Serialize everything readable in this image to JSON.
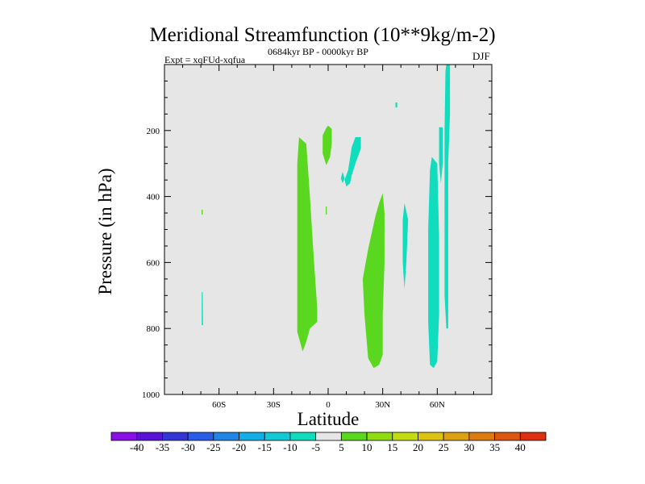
{
  "chart_data": {
    "type": "contour",
    "title": "Meridional Streamfunction (10**9kg/m-2)",
    "experiment": "Expt = xqFUd-xqfua",
    "period": "0684kyr BP - 0000kyr BP",
    "season": "DJF",
    "xlabel": "Latitude",
    "ylabel": "Pressure (in hPa)",
    "xlim": [
      -90,
      90
    ],
    "ylim": [
      1000,
      0
    ],
    "x_ticks": [
      {
        "value": -60,
        "label": "60S"
      },
      {
        "value": -30,
        "label": "30S"
      },
      {
        "value": 0,
        "label": "0"
      },
      {
        "value": 30,
        "label": "30N"
      },
      {
        "value": 60,
        "label": "60N"
      }
    ],
    "y_ticks": [
      {
        "value": 200,
        "label": "200"
      },
      {
        "value": 400,
        "label": "400"
      },
      {
        "value": 600,
        "label": "600"
      },
      {
        "value": 800,
        "label": "800"
      },
      {
        "value": 1000,
        "label": "1000"
      }
    ],
    "background_color": "#e6e6e6",
    "colorbar": {
      "levels": [
        "-40",
        "-35",
        "-30",
        "-25",
        "-20",
        "-15",
        "-10",
        "-5",
        "5",
        "10",
        "15",
        "20",
        "25",
        "30",
        "35",
        "40"
      ],
      "colors": [
        "#8a0ee6",
        "#5a12d6",
        "#3535d6",
        "#2a5de6",
        "#1f86e6",
        "#14aee6",
        "#12c9d6",
        "#10dcbe",
        "#e6e6e6",
        "#5ad81f",
        "#8fdc10",
        "#c2dc10",
        "#dcc410",
        "#dca010",
        "#dc7c10",
        "#dc5810",
        "#dc3010"
      ]
    },
    "regions": [
      {
        "name": "green-band-15s",
        "class_value": "5 to 10",
        "color": "#5ad81f",
        "points": [
          [
            -16,
            220
          ],
          [
            -12,
            240
          ],
          [
            -10,
            400
          ],
          [
            -8,
            580
          ],
          [
            -6,
            740
          ],
          [
            -6,
            780
          ],
          [
            -10,
            800
          ],
          [
            -12,
            840
          ],
          [
            -14,
            870
          ],
          [
            -17,
            810
          ],
          [
            -17,
            500
          ],
          [
            -17,
            300
          ]
        ]
      },
      {
        "name": "green-band-25n",
        "class_value": "5 to 10",
        "color": "#5ad81f",
        "points": [
          [
            30,
            390
          ],
          [
            31,
            450
          ],
          [
            31,
            600
          ],
          [
            30,
            760
          ],
          [
            30,
            880
          ],
          [
            28,
            910
          ],
          [
            25,
            920
          ],
          [
            22,
            890
          ],
          [
            20,
            760
          ],
          [
            19,
            650
          ],
          [
            22,
            560
          ],
          [
            26,
            460
          ],
          [
            28,
            420
          ]
        ]
      },
      {
        "name": "green-patch-0",
        "class_value": "5 to 10",
        "color": "#5ad81f",
        "points": [
          [
            0,
            185
          ],
          [
            2,
            195
          ],
          [
            2,
            240
          ],
          [
            1,
            280
          ],
          [
            -1,
            305
          ],
          [
            -3,
            270
          ],
          [
            -3,
            215
          ],
          [
            -1,
            192
          ]
        ]
      },
      {
        "name": "cyan-patch-15n",
        "class_value": "-5 to -10",
        "color": "#10dcbe",
        "points": [
          [
            15,
            220
          ],
          [
            18,
            220
          ],
          [
            18,
            255
          ],
          [
            15,
            300
          ],
          [
            13,
            335
          ],
          [
            12,
            360
          ],
          [
            10,
            370
          ],
          [
            9,
            350
          ],
          [
            11,
            320
          ],
          [
            13,
            250
          ]
        ]
      },
      {
        "name": "cyan-dot-7n",
        "class_value": "-5 to -10",
        "color": "#10dcbe",
        "points": [
          [
            8,
            325
          ],
          [
            9,
            345
          ],
          [
            8,
            360
          ],
          [
            7,
            345
          ]
        ]
      },
      {
        "name": "cyan-dot-37n",
        "class_value": "-5 to -10",
        "color": "#10dcbe",
        "points": [
          [
            37,
            115
          ],
          [
            38,
            115
          ],
          [
            38,
            130
          ],
          [
            37,
            130
          ]
        ]
      },
      {
        "name": "cyan-sliver-42n",
        "class_value": "-5 to -10",
        "color": "#10dcbe",
        "points": [
          [
            42,
            420
          ],
          [
            44,
            470
          ],
          [
            43,
            600
          ],
          [
            42,
            680
          ],
          [
            41,
            600
          ],
          [
            41,
            470
          ]
        ]
      },
      {
        "name": "cyan-band-60n",
        "class_value": "-5 to -10",
        "color": "#10dcbe",
        "points": [
          [
            57,
            280
          ],
          [
            60,
            300
          ],
          [
            61,
            520
          ],
          [
            61,
            760
          ],
          [
            60,
            900
          ],
          [
            58,
            920
          ],
          [
            56,
            910
          ],
          [
            55,
            780
          ],
          [
            55,
            500
          ],
          [
            56,
            320
          ]
        ]
      },
      {
        "name": "cyan-column-66n",
        "class_value": "-5 to -10",
        "color": "#10dcbe",
        "points": [
          [
            65,
            0
          ],
          [
            67,
            0
          ],
          [
            67,
            150
          ],
          [
            66,
            300
          ],
          [
            66,
            600
          ],
          [
            66,
            800
          ],
          [
            65,
            800
          ],
          [
            64,
            700
          ],
          [
            64,
            500
          ],
          [
            64,
            200
          ],
          [
            64.5,
            20
          ]
        ]
      },
      {
        "name": "cyan-sliver-62n",
        "class_value": "-5 to -10",
        "color": "#10dcbe",
        "points": [
          [
            61,
            190
          ],
          [
            63,
            190
          ],
          [
            63,
            300
          ],
          [
            62,
            360
          ],
          [
            61,
            300
          ]
        ]
      },
      {
        "name": "cyan-sliver-70s",
        "class_value": "-5 to -10",
        "color": "#10dcbe",
        "points": [
          [
            -69.5,
            690
          ],
          [
            -69,
            690
          ],
          [
            -68.8,
            790
          ],
          [
            -69.5,
            790
          ]
        ]
      },
      {
        "name": "green-dot-70s",
        "class_value": "5 to 10",
        "color": "#5ad81f",
        "points": [
          [
            -69.6,
            440
          ],
          [
            -69,
            440
          ],
          [
            -69,
            455
          ],
          [
            -69.6,
            455
          ]
        ]
      },
      {
        "name": "green-dot-0",
        "class_value": "5 to 10",
        "color": "#5ad81f",
        "points": [
          [
            -1.3,
            430
          ],
          [
            -0.7,
            430
          ],
          [
            -0.7,
            455
          ],
          [
            -1.3,
            455
          ]
        ]
      }
    ]
  }
}
